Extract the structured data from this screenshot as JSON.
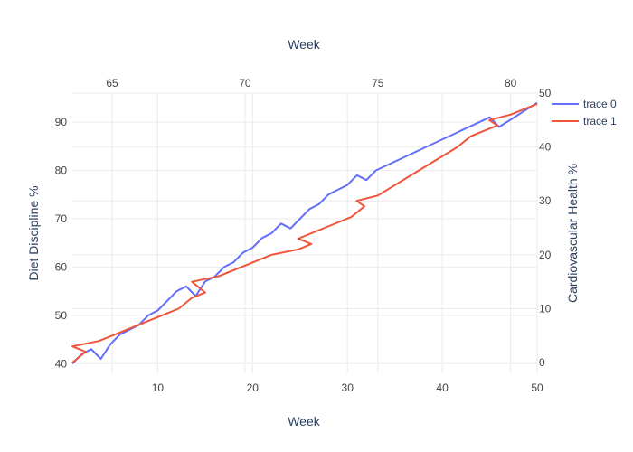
{
  "chart_data": {
    "type": "line",
    "xlabel": "Week",
    "x2label": "Week",
    "ylabel": "Diet Discipline %",
    "y2label": "Cardiovascular Health %",
    "x_ticks": [
      10,
      20,
      30,
      40,
      50
    ],
    "x2_ticks": [
      65,
      70,
      75,
      80
    ],
    "y_ticks": [
      40,
      50,
      60,
      70,
      80,
      90
    ],
    "y2_ticks": [
      0,
      10,
      20,
      30,
      40,
      50
    ],
    "xlim": [
      1,
      50
    ],
    "x2lim": [
      63.5,
      81
    ],
    "ylim": [
      38,
      96
    ],
    "y2lim": [
      -2,
      50
    ],
    "grid": true,
    "legend_position": "top-right",
    "colors": {
      "trace0": "#636efa",
      "trace1": "#ef553b"
    },
    "series": [
      {
        "name": "trace 0",
        "axis": "x-y",
        "x": [
          1,
          2,
          3,
          4,
          5,
          6,
          7,
          8,
          9,
          10,
          11,
          12,
          13,
          14,
          15,
          16,
          17,
          18,
          19,
          20,
          21,
          22,
          23,
          24,
          25,
          26,
          27,
          28,
          29,
          30,
          31,
          32,
          33,
          45,
          46,
          50
        ],
        "y": [
          40,
          42,
          43,
          41,
          44,
          46,
          47,
          48,
          50,
          51,
          53,
          55,
          56,
          54,
          57,
          58,
          60,
          61,
          63,
          64,
          66,
          67,
          69,
          68,
          70,
          72,
          73,
          75,
          76,
          77,
          79,
          78,
          80,
          91,
          89,
          94
        ]
      },
      {
        "name": "trace 1",
        "axis": "x2-y2",
        "x": [
          63.5,
          64,
          63.5,
          64.5,
          65,
          66,
          67,
          67.5,
          68,
          68.5,
          68,
          69,
          70,
          71,
          72,
          72.5,
          72,
          73,
          74,
          74.5,
          74.2,
          75,
          76,
          77,
          78,
          78.5,
          79,
          79.5,
          79.2,
          80,
          81
        ],
        "y": [
          0,
          2,
          3,
          4,
          5,
          7,
          9,
          10,
          12,
          13,
          15,
          16,
          18,
          20,
          21,
          22,
          23,
          25,
          27,
          29,
          30,
          31,
          34,
          37,
          40,
          42,
          43,
          44,
          45,
          46,
          48
        ]
      }
    ]
  }
}
